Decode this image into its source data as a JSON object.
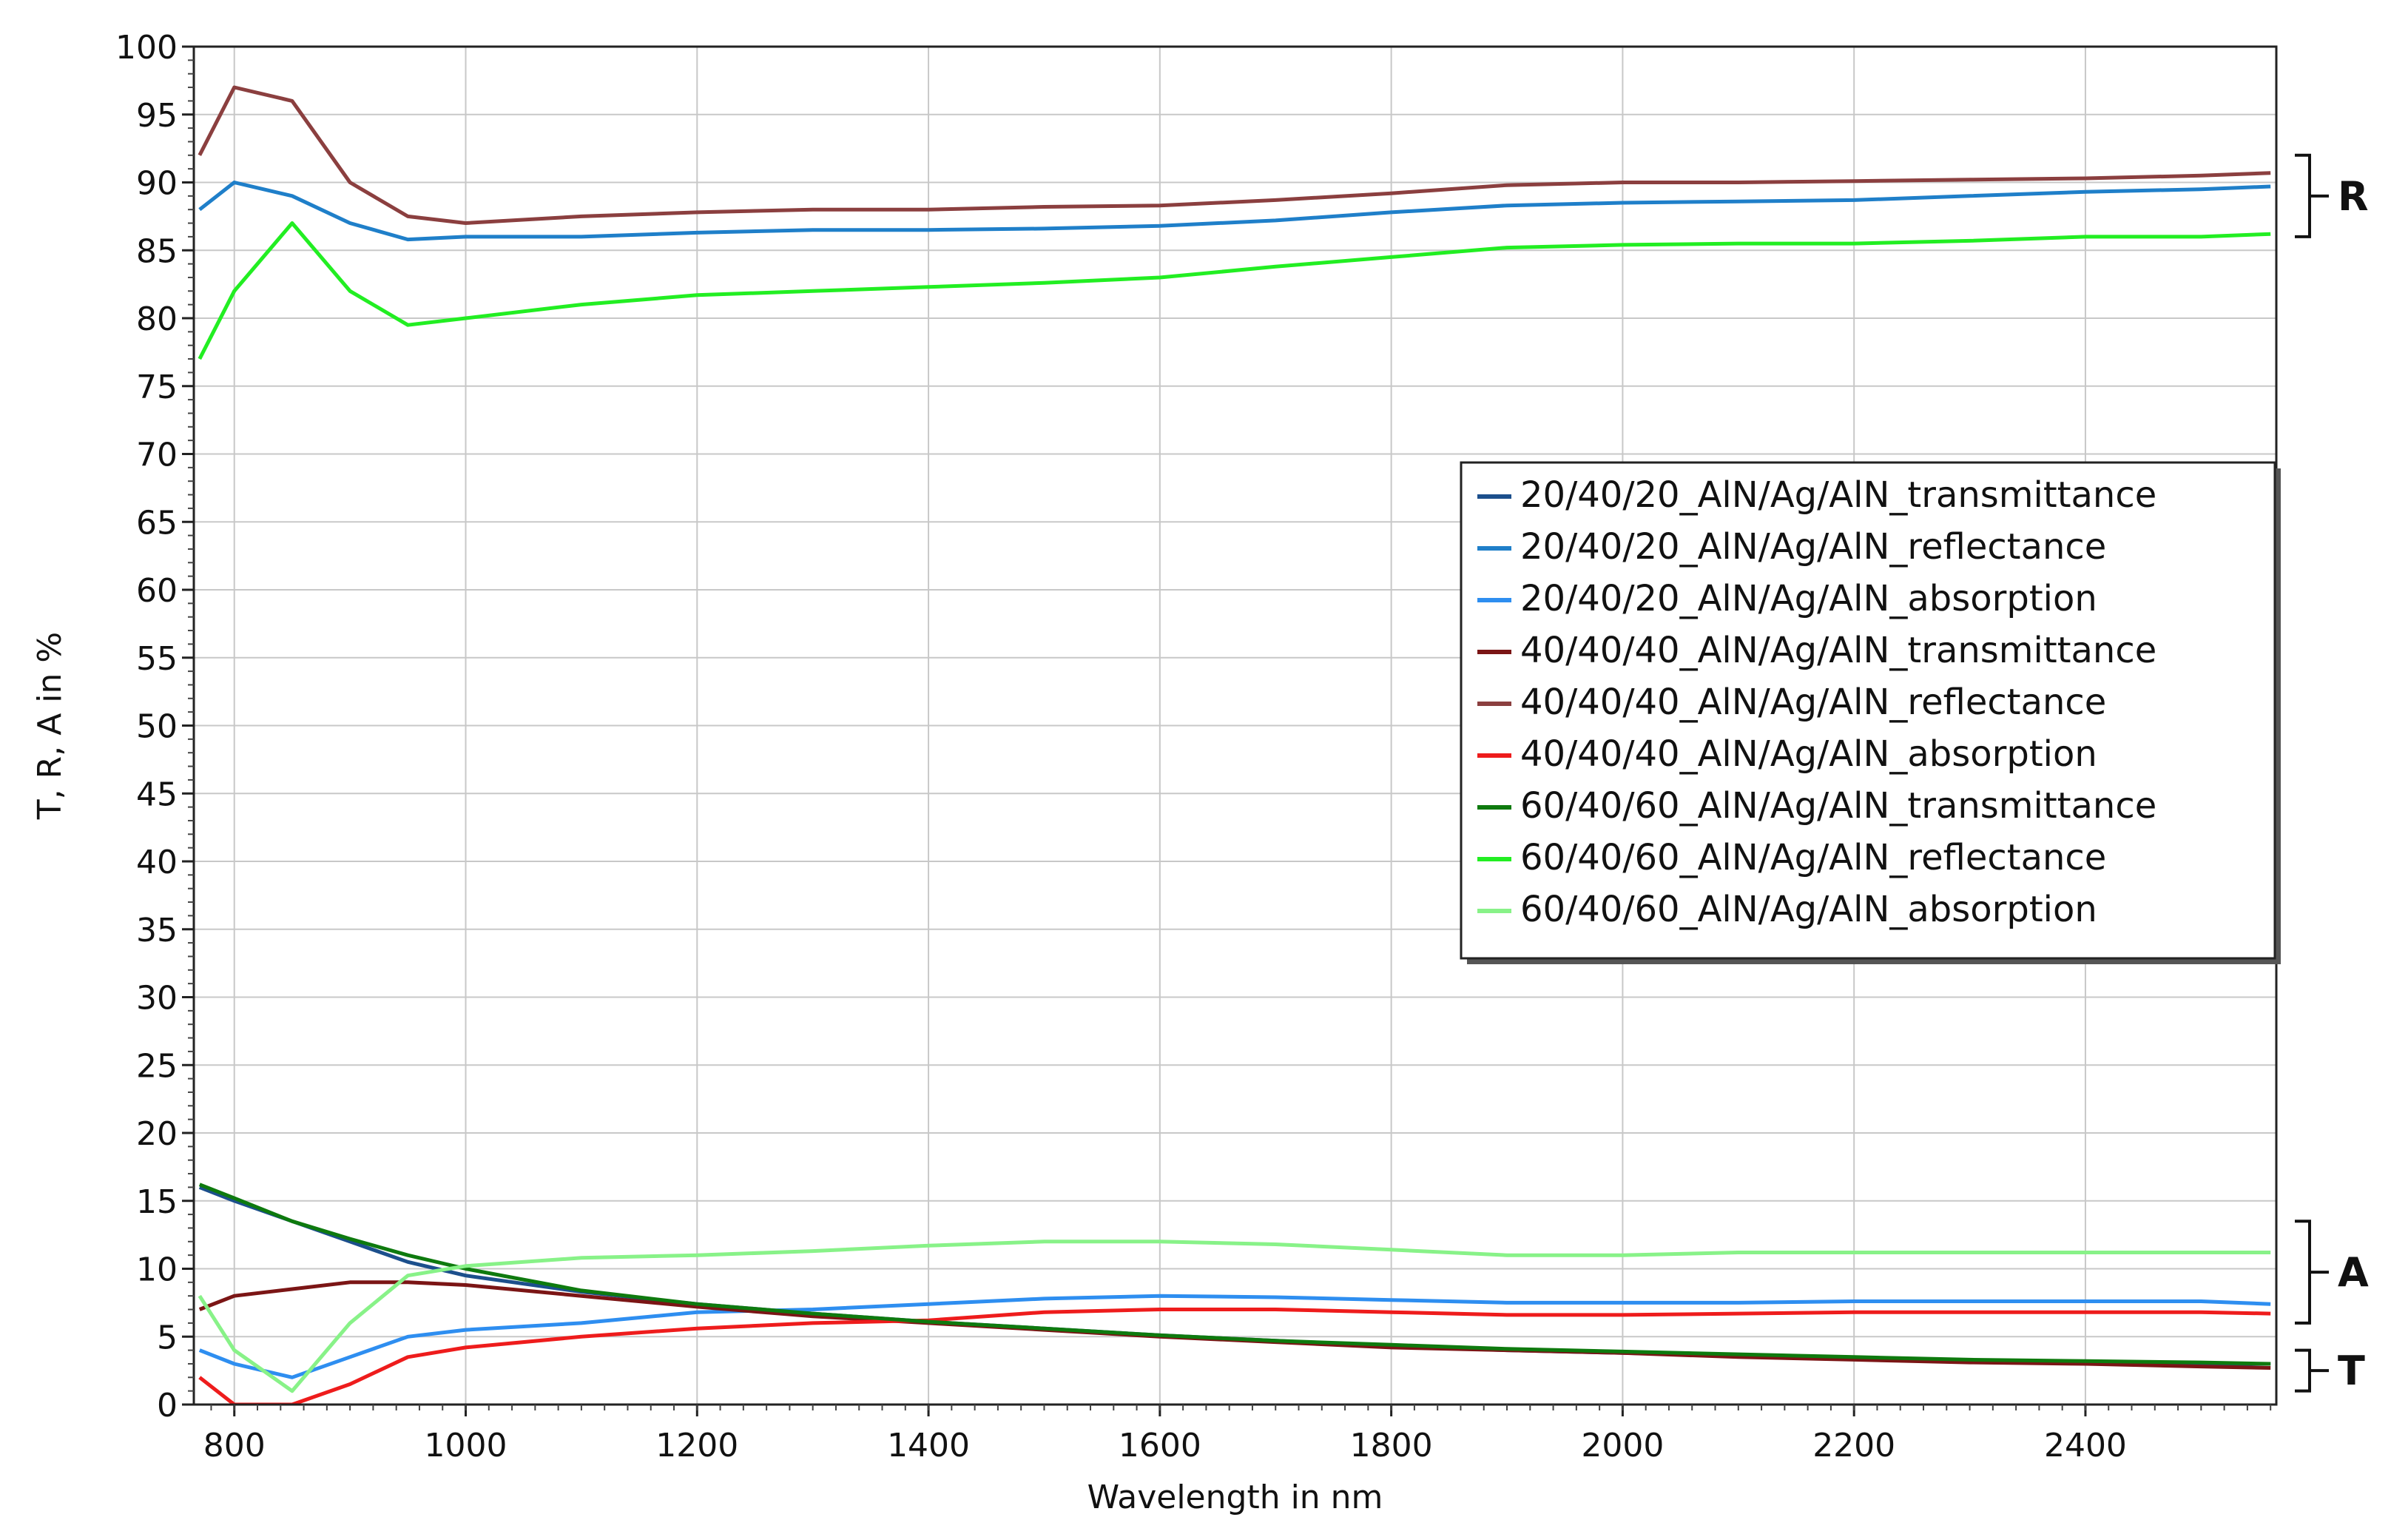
{
  "chart_data": {
    "type": "line",
    "title": "",
    "xlabel": "Wavelength in nm",
    "ylabel": "T, R, A in %",
    "xlim": [
      765,
      2565
    ],
    "ylim": [
      0,
      100
    ],
    "x_ticks": [
      800,
      1000,
      1200,
      1400,
      1600,
      1800,
      2000,
      2200,
      2400
    ],
    "y_ticks": [
      0,
      5,
      10,
      15,
      20,
      25,
      30,
      35,
      40,
      45,
      50,
      55,
      60,
      65,
      70,
      75,
      80,
      85,
      90,
      95,
      100
    ],
    "grid": true,
    "legend_position": "right-upper-middle",
    "series": [
      {
        "name": "20/40/20_AlN/Ag/AlN_transmittance",
        "color": "#1c4f8c",
        "x": [
          770,
          800,
          850,
          900,
          950,
          1000,
          1100,
          1200,
          1300,
          1400,
          1500,
          1600,
          1700,
          1800,
          1900,
          2000,
          2100,
          2200,
          2300,
          2400,
          2500,
          2560
        ],
        "y": [
          16,
          15,
          13.5,
          12,
          10.5,
          9.5,
          8.3,
          7.4,
          6.7,
          6.1,
          5.6,
          5.1,
          4.7,
          4.3,
          4.0,
          3.8,
          3.6,
          3.4,
          3.2,
          3.1,
          3.0,
          3.0
        ]
      },
      {
        "name": "20/40/20_AlN/Ag/AlN_reflectance",
        "color": "#1f7fc9",
        "x": [
          770,
          800,
          850,
          900,
          950,
          1000,
          1100,
          1200,
          1300,
          1400,
          1500,
          1600,
          1700,
          1800,
          1900,
          2000,
          2100,
          2200,
          2300,
          2400,
          2500,
          2560
        ],
        "y": [
          88,
          90,
          89,
          87,
          85.8,
          86.0,
          86.0,
          86.3,
          86.5,
          86.5,
          86.6,
          86.8,
          87.2,
          87.8,
          88.3,
          88.5,
          88.6,
          88.7,
          89.0,
          89.3,
          89.5,
          89.7
        ]
      },
      {
        "name": "20/40/20_AlN/Ag/AlN_absorption",
        "color": "#2e8ef0",
        "x": [
          770,
          800,
          850,
          900,
          950,
          1000,
          1100,
          1200,
          1300,
          1400,
          1500,
          1600,
          1700,
          1800,
          1900,
          2000,
          2100,
          2200,
          2300,
          2400,
          2500,
          2560
        ],
        "y": [
          4,
          3,
          2,
          3.5,
          5.0,
          5.5,
          6.0,
          6.8,
          7.0,
          7.4,
          7.8,
          8.0,
          7.9,
          7.7,
          7.5,
          7.5,
          7.5,
          7.6,
          7.6,
          7.6,
          7.6,
          7.4
        ]
      },
      {
        "name": "40/40/40_AlN/Ag/AlN_transmittance",
        "color": "#7b1515",
        "x": [
          770,
          800,
          850,
          900,
          950,
          1000,
          1100,
          1200,
          1300,
          1400,
          1500,
          1600,
          1700,
          1800,
          1900,
          2000,
          2100,
          2200,
          2300,
          2400,
          2500,
          2560
        ],
        "y": [
          7,
          8,
          8.5,
          9,
          9,
          8.8,
          8.0,
          7.2,
          6.5,
          6.0,
          5.5,
          5.0,
          4.6,
          4.2,
          4.0,
          3.8,
          3.5,
          3.3,
          3.1,
          3.0,
          2.8,
          2.7
        ]
      },
      {
        "name": "40/40/40_AlN/Ag/AlN_reflectance",
        "color": "#8b3f3f",
        "x": [
          770,
          800,
          850,
          900,
          950,
          1000,
          1100,
          1200,
          1300,
          1400,
          1500,
          1600,
          1700,
          1800,
          1900,
          2000,
          2100,
          2200,
          2300,
          2400,
          2500,
          2560
        ],
        "y": [
          92,
          97,
          96,
          90,
          87.5,
          87.0,
          87.5,
          87.8,
          88.0,
          88.0,
          88.2,
          88.3,
          88.7,
          89.2,
          89.8,
          90.0,
          90.0,
          90.1,
          90.2,
          90.3,
          90.5,
          90.7
        ]
      },
      {
        "name": "40/40/40_AlN/Ag/AlN_absorption",
        "color": "#ee1c1c",
        "x": [
          770,
          800,
          850,
          900,
          950,
          1000,
          1100,
          1200,
          1300,
          1400,
          1500,
          1600,
          1700,
          1800,
          1900,
          2000,
          2100,
          2200,
          2300,
          2400,
          2500,
          2560
        ],
        "y": [
          2,
          0,
          0,
          1.5,
          3.5,
          4.2,
          5.0,
          5.6,
          6.0,
          6.2,
          6.8,
          7.0,
          7.0,
          6.8,
          6.6,
          6.6,
          6.7,
          6.8,
          6.8,
          6.8,
          6.8,
          6.7
        ]
      },
      {
        "name": "60/40/60_AlN/Ag/AlN_transmittance",
        "color": "#0e7a0e",
        "x": [
          770,
          800,
          850,
          900,
          950,
          1000,
          1100,
          1200,
          1300,
          1400,
          1500,
          1600,
          1700,
          1800,
          1900,
          2000,
          2100,
          2200,
          2300,
          2400,
          2500,
          2560
        ],
        "y": [
          16.2,
          15.2,
          13.5,
          12.2,
          11.0,
          10.0,
          8.4,
          7.4,
          6.7,
          6.1,
          5.6,
          5.1,
          4.7,
          4.4,
          4.1,
          3.9,
          3.7,
          3.5,
          3.3,
          3.2,
          3.1,
          3.0
        ]
      },
      {
        "name": "60/40/60_AlN/Ag/AlN_reflectance",
        "color": "#22ee22",
        "x": [
          770,
          800,
          850,
          900,
          950,
          1000,
          1100,
          1200,
          1300,
          1400,
          1500,
          1600,
          1700,
          1800,
          1900,
          2000,
          2100,
          2200,
          2300,
          2400,
          2500,
          2560
        ],
        "y": [
          77,
          82,
          87,
          82,
          79.5,
          80.0,
          81.0,
          81.7,
          82.0,
          82.3,
          82.6,
          83.0,
          83.8,
          84.5,
          85.2,
          85.4,
          85.5,
          85.5,
          85.7,
          86.0,
          86.0,
          86.2
        ]
      },
      {
        "name": "60/40/60_AlN/Ag/AlN_absorption",
        "color": "#88f288",
        "x": [
          770,
          800,
          850,
          900,
          950,
          1000,
          1100,
          1200,
          1300,
          1400,
          1500,
          1600,
          1700,
          1800,
          1900,
          2000,
          2100,
          2200,
          2300,
          2400,
          2500,
          2560
        ],
        "y": [
          8,
          4,
          1,
          6,
          9.5,
          10.2,
          10.8,
          11.0,
          11.3,
          11.7,
          12.0,
          12.0,
          11.8,
          11.4,
          11.0,
          11.0,
          11.2,
          11.2,
          11.2,
          11.2,
          11.2,
          11.2
        ]
      }
    ],
    "annotations": [
      {
        "label": "R",
        "range": [
          86,
          92
        ]
      },
      {
        "label": "A",
        "range": [
          6,
          13.5
        ]
      },
      {
        "label": "T",
        "range": [
          1,
          4
        ]
      }
    ]
  }
}
